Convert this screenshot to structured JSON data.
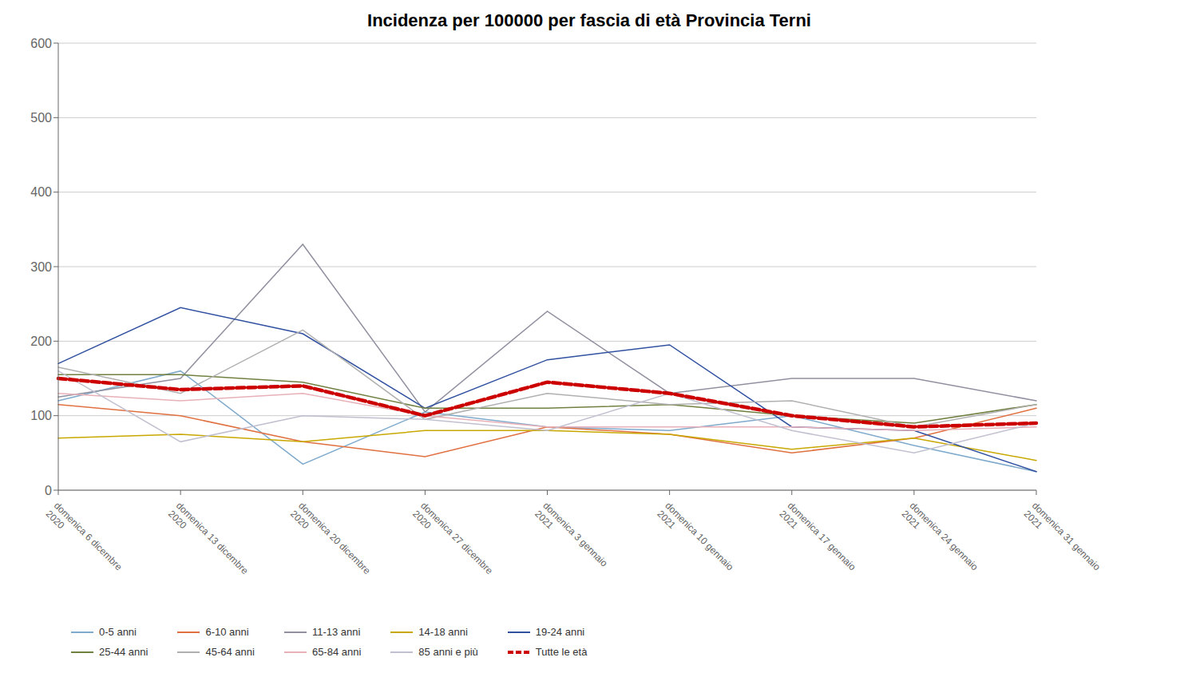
{
  "chart_data": {
    "type": "line",
    "title": "Incidenza per 100000 per fascia di età Provincia Terni",
    "categories": [
      "domenica 6 dicembre\n2020",
      "domenica 13 dicembre\n2020",
      "domenica 20 dicembre\n2020",
      "domenica 27 dicembre\n2020",
      "domenica 3 gennaio\n2021",
      "domenica 10 gennaio\n2021",
      "domenica 17 gennaio\n2021",
      "domenica 24 gennaio\n2021",
      "domenica 31 gennaio\n2021"
    ],
    "series": [
      {
        "name": "0-5 anni",
        "color": "#7faacc",
        "line_style": "solid",
        "values": [
          120,
          160,
          35,
          105,
          85,
          80,
          100,
          60,
          25
        ]
      },
      {
        "name": "6-10 anni",
        "color": "#e07040",
        "line_style": "solid",
        "values": [
          115,
          100,
          65,
          45,
          85,
          75,
          50,
          70,
          110
        ]
      },
      {
        "name": "11-13 anni",
        "color": "#9090a0",
        "line_style": "solid",
        "values": [
          125,
          150,
          330,
          105,
          240,
          130,
          150,
          150,
          120
        ]
      },
      {
        "name": "14-18 anni",
        "color": "#c8a800",
        "line_style": "solid",
        "values": [
          70,
          75,
          65,
          80,
          80,
          75,
          55,
          70,
          40
        ]
      },
      {
        "name": "19-24 anni",
        "color": "#3050a0",
        "line_style": "solid",
        "values": [
          170,
          245,
          210,
          110,
          175,
          195,
          85,
          80,
          25
        ]
      },
      {
        "name": "25-44 anni",
        "color": "#708040",
        "line_style": "solid",
        "values": [
          155,
          155,
          145,
          110,
          110,
          115,
          100,
          90,
          115
        ]
      },
      {
        "name": "45-64 anni",
        "color": "#b0b0b0",
        "line_style": "solid",
        "values": [
          165,
          130,
          215,
          95,
          130,
          115,
          120,
          85,
          115
        ]
      },
      {
        "name": "65-84 anni",
        "color": "#e8b0b8",
        "line_style": "solid",
        "values": [
          130,
          120,
          130,
          100,
          85,
          85,
          85,
          80,
          85
        ]
      },
      {
        "name": "85 anni e più",
        "color": "#c0c0d0",
        "line_style": "solid",
        "values": [
          160,
          65,
          100,
          95,
          80,
          130,
          80,
          50,
          90
        ]
      },
      {
        "name": "Tutte le età",
        "color": "#CC0000",
        "line_style": "dashed",
        "values": [
          150,
          135,
          140,
          100,
          145,
          130,
          100,
          85,
          90
        ]
      }
    ],
    "ylim": [
      0,
      600
    ],
    "yticks": [
      0,
      100,
      200,
      300,
      400,
      500,
      600
    ],
    "grid": true,
    "legend": "bottom"
  }
}
